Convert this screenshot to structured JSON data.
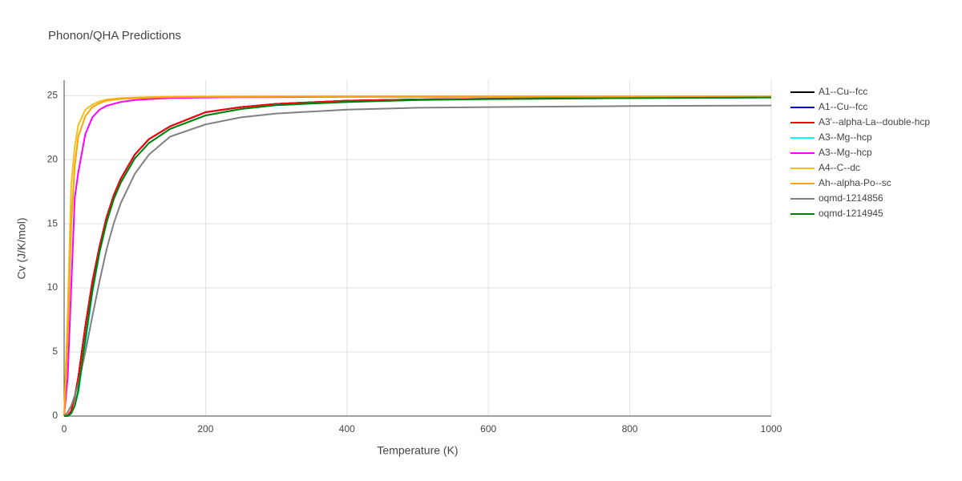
{
  "chart_data": {
    "type": "line",
    "title": "Phonon/QHA Predictions",
    "x_label": "Temperature (K)",
    "y_label": "Cv (J/K/mol)",
    "x": [
      0,
      5,
      10,
      15,
      20,
      30,
      40,
      50,
      60,
      70,
      80,
      100,
      120,
      150,
      200,
      250,
      300,
      400,
      500,
      600,
      800,
      1000
    ],
    "series": [
      {
        "name": "A1--Cu--fcc",
        "color": "#000000",
        "values": [
          0,
          0.05,
          0.4,
          1.5,
          3,
          7,
          10.5,
          13.2,
          15.5,
          17.2,
          18.5,
          20.4,
          21.6,
          22.6,
          23.7,
          24.1,
          24.35,
          24.6,
          24.7,
          24.75,
          24.82,
          24.86
        ]
      },
      {
        "name": "A1--Cu--fcc",
        "color": "#0000ff",
        "values": [
          0,
          0.05,
          0.4,
          1.5,
          3,
          7,
          10.5,
          13.2,
          15.5,
          17.2,
          18.5,
          20.4,
          21.6,
          22.6,
          23.7,
          24.1,
          24.35,
          24.6,
          24.7,
          24.75,
          24.82,
          24.86
        ]
      },
      {
        "name": "A3'--alpha-La--double-hcp",
        "color": "#ff0000",
        "values": [
          0,
          0.05,
          0.4,
          1.5,
          3,
          7,
          10.5,
          13.2,
          15.5,
          17.2,
          18.5,
          20.4,
          21.6,
          22.6,
          23.7,
          24.1,
          24.35,
          24.6,
          24.7,
          24.75,
          24.82,
          24.86
        ]
      },
      {
        "name": "A3--Mg--hcp",
        "color": "#00ffff",
        "values": [
          0,
          0,
          0.2,
          0.8,
          1.8,
          5.6,
          9.6,
          12.7,
          15.1,
          16.9,
          18.2,
          20.1,
          21.3,
          22.4,
          23.45,
          23.95,
          24.25,
          24.5,
          24.65,
          24.72,
          24.8,
          24.85
        ]
      },
      {
        "name": "A3--Mg--hcp",
        "color": "#ff00ff",
        "values": [
          0,
          3,
          10,
          17,
          19,
          22,
          23.3,
          23.9,
          24.2,
          24.35,
          24.5,
          24.65,
          24.72,
          24.8,
          24.85,
          24.87,
          24.88,
          24.9,
          24.9,
          24.9,
          24.9,
          24.9
        ]
      },
      {
        "name": "A4--C--dc",
        "color": "#f0c020",
        "values": [
          0,
          8,
          18,
          21,
          22.7,
          23.9,
          24.3,
          24.55,
          24.7,
          24.75,
          24.8,
          24.85,
          24.88,
          24.9,
          24.92,
          24.93,
          24.94,
          24.95,
          24.95,
          24.95,
          24.95,
          24.95
        ]
      },
      {
        "name": "Ah--alpha-Po--sc",
        "color": "#ffa500",
        "values": [
          0,
          6,
          15,
          19.5,
          21.8,
          23.4,
          24.1,
          24.4,
          24.6,
          24.68,
          24.74,
          24.8,
          24.84,
          24.87,
          24.9,
          24.9,
          24.91,
          24.92,
          24.92,
          24.92,
          24.92,
          24.92
        ]
      },
      {
        "name": "oqmd-1214856",
        "color": "#808080",
        "values": [
          0,
          0.3,
          0.8,
          1.6,
          2.5,
          5,
          7.8,
          10.5,
          13,
          15,
          16.6,
          18.9,
          20.4,
          21.8,
          22.75,
          23.3,
          23.6,
          23.9,
          24.05,
          24.1,
          24.18,
          24.22
        ]
      },
      {
        "name": "oqmd-1214945",
        "color": "#008000",
        "values": [
          0,
          0,
          0.2,
          0.8,
          2,
          6,
          9.8,
          12.8,
          15.1,
          16.9,
          18.2,
          20.1,
          21.3,
          22.4,
          23.45,
          23.95,
          24.25,
          24.5,
          24.65,
          24.72,
          24.8,
          24.85
        ]
      }
    ],
    "xlim": [
      0,
      1000
    ],
    "xticks": [
      0,
      200,
      400,
      600,
      800,
      1000
    ],
    "ylim": [
      0,
      26.2
    ],
    "yticks": [
      0,
      5,
      10,
      15,
      20,
      25
    ],
    "grid": true,
    "legend": "right"
  }
}
